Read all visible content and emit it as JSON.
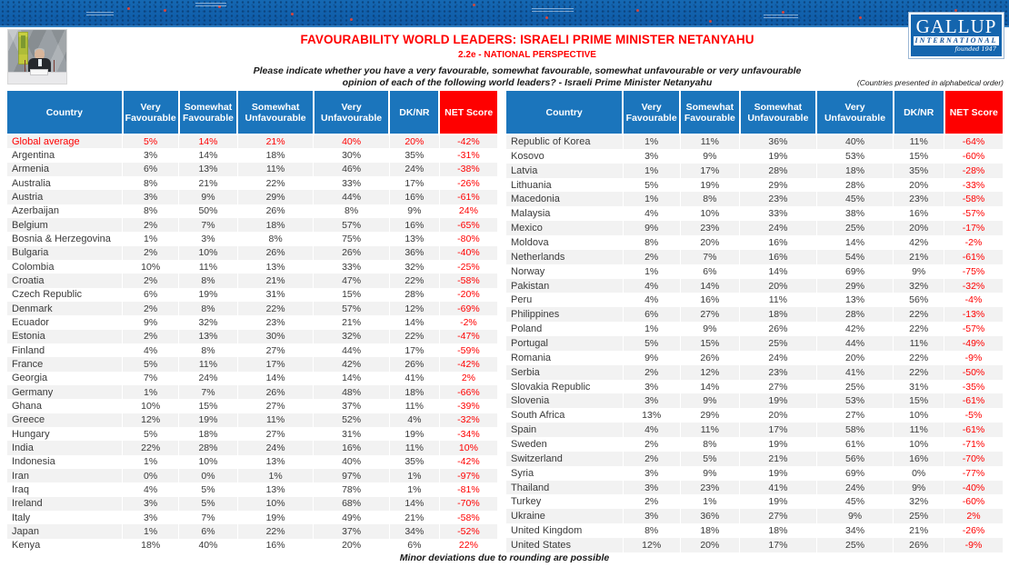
{
  "logo": {
    "line1": "GALLUP",
    "line2": "INTERNATIONAL",
    "line3": "founded 1947"
  },
  "header": {
    "title": "FAVOURABILITY WORLD LEADERS: ISRAELI PRIME MINISTER NETANYAHU",
    "subtitle": "2.2e - NATIONAL PERSPECTIVE",
    "question_line1": "Please indicate whether you have a very favourable, somewhat favourable, somewhat unfavourable or very unfavourable",
    "question_line2": "opinion of each of the following world leaders? - Israeli Prime Minister Netanyahu",
    "order_note": "(Countries presented in alphabetical order)"
  },
  "colors": {
    "header_blue": "#1B75BC",
    "net_red": "#FE0000",
    "accent_red": "#FF0000",
    "stripe_gray": "#F2F2F2",
    "banner_blue": "#1467B2"
  },
  "table": {
    "columns": [
      "Country",
      "Very Favourable",
      "Somewhat Favourable",
      "Somewhat Unfavourable",
      "Very Unfavourable",
      "DK/NR",
      "NET Score"
    ],
    "left_rows": [
      {
        "country": "Global average",
        "values": [
          "5%",
          "14%",
          "21%",
          "40%",
          "20%"
        ],
        "net": "-42%",
        "highlight": true
      },
      {
        "country": "Argentina",
        "values": [
          "3%",
          "14%",
          "18%",
          "30%",
          "35%"
        ],
        "net": "-31%"
      },
      {
        "country": "Armenia",
        "values": [
          "6%",
          "13%",
          "11%",
          "46%",
          "24%"
        ],
        "net": "-38%"
      },
      {
        "country": "Australia",
        "values": [
          "8%",
          "21%",
          "22%",
          "33%",
          "17%"
        ],
        "net": "-26%"
      },
      {
        "country": "Austria",
        "values": [
          "3%",
          "9%",
          "29%",
          "44%",
          "16%"
        ],
        "net": "-61%"
      },
      {
        "country": "Azerbaijan",
        "values": [
          "8%",
          "50%",
          "26%",
          "8%",
          "9%"
        ],
        "net": "24%"
      },
      {
        "country": "Belgium",
        "values": [
          "2%",
          "7%",
          "18%",
          "57%",
          "16%"
        ],
        "net": "-65%"
      },
      {
        "country": "Bosnia & Herzegovina",
        "values": [
          "1%",
          "3%",
          "8%",
          "75%",
          "13%"
        ],
        "net": "-80%"
      },
      {
        "country": "Bulgaria",
        "values": [
          "2%",
          "10%",
          "26%",
          "26%",
          "36%"
        ],
        "net": "-40%"
      },
      {
        "country": "Colombia",
        "values": [
          "10%",
          "11%",
          "13%",
          "33%",
          "32%"
        ],
        "net": "-25%"
      },
      {
        "country": "Croatia",
        "values": [
          "2%",
          "8%",
          "21%",
          "47%",
          "22%"
        ],
        "net": "-58%"
      },
      {
        "country": "Czech Republic",
        "values": [
          "6%",
          "19%",
          "31%",
          "15%",
          "28%"
        ],
        "net": "-20%"
      },
      {
        "country": "Denmark",
        "values": [
          "2%",
          "8%",
          "22%",
          "57%",
          "12%"
        ],
        "net": "-69%"
      },
      {
        "country": "Ecuador",
        "values": [
          "9%",
          "32%",
          "23%",
          "21%",
          "14%"
        ],
        "net": "-2%"
      },
      {
        "country": "Estonia",
        "values": [
          "2%",
          "13%",
          "30%",
          "32%",
          "22%"
        ],
        "net": "-47%"
      },
      {
        "country": "Finland",
        "values": [
          "4%",
          "8%",
          "27%",
          "44%",
          "17%"
        ],
        "net": "-59%"
      },
      {
        "country": "France",
        "values": [
          "5%",
          "11%",
          "17%",
          "42%",
          "26%"
        ],
        "net": "-42%"
      },
      {
        "country": "Georgia",
        "values": [
          "7%",
          "24%",
          "14%",
          "14%",
          "41%"
        ],
        "net": "2%"
      },
      {
        "country": "Germany",
        "values": [
          "1%",
          "7%",
          "26%",
          "48%",
          "18%"
        ],
        "net": "-66%"
      },
      {
        "country": "Ghana",
        "values": [
          "10%",
          "15%",
          "27%",
          "37%",
          "11%"
        ],
        "net": "-39%"
      },
      {
        "country": "Greece",
        "values": [
          "12%",
          "19%",
          "11%",
          "52%",
          "4%"
        ],
        "net": "-32%"
      },
      {
        "country": "Hungary",
        "values": [
          "5%",
          "18%",
          "27%",
          "31%",
          "19%"
        ],
        "net": "-34%"
      },
      {
        "country": "India",
        "values": [
          "22%",
          "28%",
          "24%",
          "16%",
          "11%"
        ],
        "net": "10%"
      },
      {
        "country": "Indonesia",
        "values": [
          "1%",
          "10%",
          "13%",
          "40%",
          "35%"
        ],
        "net": "-42%"
      },
      {
        "country": "Iran",
        "values": [
          "0%",
          "0%",
          "1%",
          "97%",
          "1%"
        ],
        "net": "-97%"
      },
      {
        "country": "Iraq",
        "values": [
          "4%",
          "5%",
          "13%",
          "78%",
          "1%"
        ],
        "net": "-81%"
      },
      {
        "country": "Ireland",
        "values": [
          "3%",
          "5%",
          "10%",
          "68%",
          "14%"
        ],
        "net": "-70%"
      },
      {
        "country": "Italy",
        "values": [
          "3%",
          "7%",
          "19%",
          "49%",
          "21%"
        ],
        "net": "-58%"
      },
      {
        "country": "Japan",
        "values": [
          "1%",
          "6%",
          "22%",
          "37%",
          "34%"
        ],
        "net": "-52%"
      },
      {
        "country": "Kenya",
        "values": [
          "18%",
          "40%",
          "16%",
          "20%",
          "6%"
        ],
        "net": "22%"
      }
    ],
    "right_rows": [
      {
        "country": "Republic of Korea",
        "values": [
          "1%",
          "11%",
          "36%",
          "40%",
          "11%"
        ],
        "net": "-64%"
      },
      {
        "country": "Kosovo",
        "values": [
          "3%",
          "9%",
          "19%",
          "53%",
          "15%"
        ],
        "net": "-60%"
      },
      {
        "country": "Latvia",
        "values": [
          "1%",
          "17%",
          "28%",
          "18%",
          "35%"
        ],
        "net": "-28%"
      },
      {
        "country": "Lithuania",
        "values": [
          "5%",
          "19%",
          "29%",
          "28%",
          "20%"
        ],
        "net": "-33%"
      },
      {
        "country": "Macedonia",
        "values": [
          "1%",
          "8%",
          "23%",
          "45%",
          "23%"
        ],
        "net": "-58%"
      },
      {
        "country": "Malaysia",
        "values": [
          "4%",
          "10%",
          "33%",
          "38%",
          "16%"
        ],
        "net": "-57%"
      },
      {
        "country": "Mexico",
        "values": [
          "9%",
          "23%",
          "24%",
          "25%",
          "20%"
        ],
        "net": "-17%"
      },
      {
        "country": "Moldova",
        "values": [
          "8%",
          "20%",
          "16%",
          "14%",
          "42%"
        ],
        "net": "-2%"
      },
      {
        "country": "Netherlands",
        "values": [
          "2%",
          "7%",
          "16%",
          "54%",
          "21%"
        ],
        "net": "-61%"
      },
      {
        "country": "Norway",
        "values": [
          "1%",
          "6%",
          "14%",
          "69%",
          "9%"
        ],
        "net": "-75%"
      },
      {
        "country": "Pakistan",
        "values": [
          "4%",
          "14%",
          "20%",
          "29%",
          "32%"
        ],
        "net": "-32%"
      },
      {
        "country": "Peru",
        "values": [
          "4%",
          "16%",
          "11%",
          "13%",
          "56%"
        ],
        "net": "-4%"
      },
      {
        "country": "Philippines",
        "values": [
          "6%",
          "27%",
          "18%",
          "28%",
          "22%"
        ],
        "net": "-13%"
      },
      {
        "country": "Poland",
        "values": [
          "1%",
          "9%",
          "26%",
          "42%",
          "22%"
        ],
        "net": "-57%"
      },
      {
        "country": "Portugal",
        "values": [
          "5%",
          "15%",
          "25%",
          "44%",
          "11%"
        ],
        "net": "-49%"
      },
      {
        "country": "Romania",
        "values": [
          "9%",
          "26%",
          "24%",
          "20%",
          "22%"
        ],
        "net": "-9%"
      },
      {
        "country": "Serbia",
        "values": [
          "2%",
          "12%",
          "23%",
          "41%",
          "22%"
        ],
        "net": "-50%"
      },
      {
        "country": "Slovakia Republic",
        "values": [
          "3%",
          "14%",
          "27%",
          "25%",
          "31%"
        ],
        "net": "-35%"
      },
      {
        "country": "Slovenia",
        "values": [
          "3%",
          "9%",
          "19%",
          "53%",
          "15%"
        ],
        "net": "-61%"
      },
      {
        "country": "South Africa",
        "values": [
          "13%",
          "29%",
          "20%",
          "27%",
          "10%"
        ],
        "net": "-5%"
      },
      {
        "country": "Spain",
        "values": [
          "4%",
          "11%",
          "17%",
          "58%",
          "11%"
        ],
        "net": "-61%"
      },
      {
        "country": "Sweden",
        "values": [
          "2%",
          "8%",
          "19%",
          "61%",
          "10%"
        ],
        "net": "-71%"
      },
      {
        "country": "Switzerland",
        "values": [
          "2%",
          "5%",
          "21%",
          "56%",
          "16%"
        ],
        "net": "-70%"
      },
      {
        "country": "Syria",
        "values": [
          "3%",
          "9%",
          "19%",
          "69%",
          "0%"
        ],
        "net": "-77%"
      },
      {
        "country": "Thailand",
        "values": [
          "3%",
          "23%",
          "41%",
          "24%",
          "9%"
        ],
        "net": "-40%"
      },
      {
        "country": "Turkey",
        "values": [
          "2%",
          "1%",
          "19%",
          "45%",
          "32%"
        ],
        "net": "-60%"
      },
      {
        "country": "Ukraine",
        "values": [
          "3%",
          "36%",
          "27%",
          "9%",
          "25%"
        ],
        "net": "2%"
      },
      {
        "country": "United Kingdom",
        "values": [
          "8%",
          "18%",
          "18%",
          "34%",
          "21%"
        ],
        "net": "-26%"
      },
      {
        "country": "United States",
        "values": [
          "12%",
          "20%",
          "17%",
          "25%",
          "26%"
        ],
        "net": "-9%"
      }
    ]
  },
  "footer": {
    "note": "Minor deviations due to rounding are possible"
  }
}
